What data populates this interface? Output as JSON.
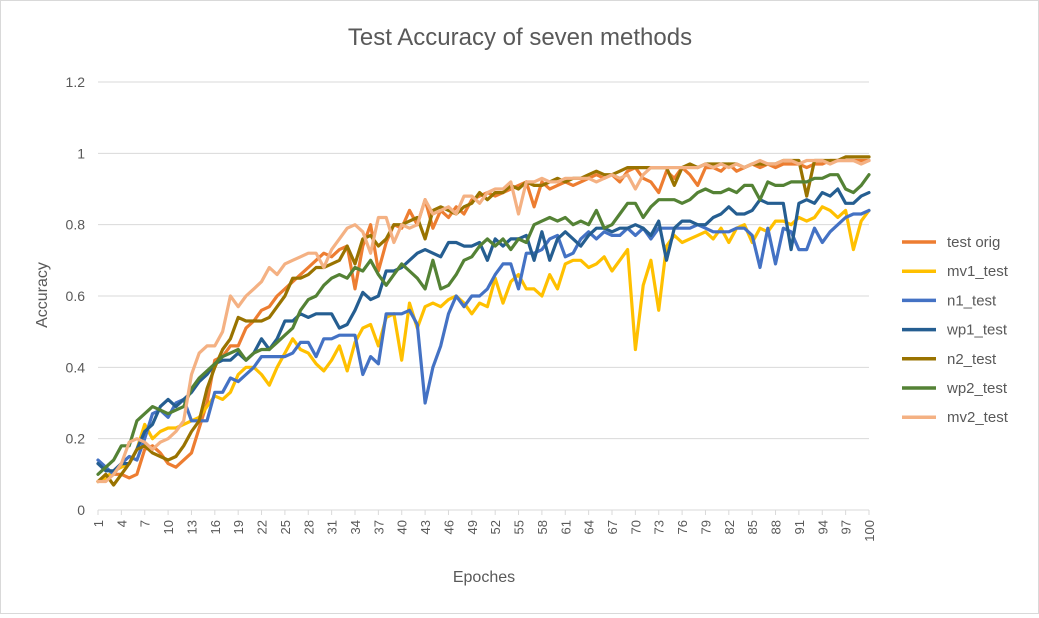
{
  "chart_data": {
    "type": "line",
    "title": "Test Accuracy of seven methods",
    "xlabel": "Epoches",
    "ylabel": "Accuracy",
    "ylim": [
      0,
      1.2
    ],
    "yticks": [
      "0",
      "0.2",
      "0.4",
      "0.6",
      "0.8",
      "1",
      "1.2"
    ],
    "xlim": [
      1,
      100
    ],
    "xticks": [
      1,
      4,
      7,
      10,
      13,
      16,
      19,
      22,
      25,
      28,
      31,
      34,
      37,
      40,
      43,
      46,
      49,
      52,
      55,
      58,
      61,
      64,
      67,
      70,
      73,
      76,
      79,
      82,
      85,
      88,
      91,
      94,
      97,
      100
    ],
    "grid": "horizontal",
    "legend": "right",
    "x": "1..100 (epoch)",
    "series": [
      {
        "name": "test orig",
        "color": "#ED7D31",
        "values": [
          0.08,
          0.09,
          0.1,
          0.1,
          0.09,
          0.1,
          0.17,
          0.18,
          0.16,
          0.13,
          0.12,
          0.14,
          0.16,
          0.23,
          0.3,
          0.42,
          0.43,
          0.46,
          0.46,
          0.51,
          0.53,
          0.56,
          0.57,
          0.6,
          0.62,
          0.64,
          0.66,
          0.68,
          0.7,
          0.72,
          0.71,
          0.73,
          0.74,
          0.62,
          0.74,
          0.8,
          0.67,
          0.75,
          0.8,
          0.79,
          0.84,
          0.8,
          0.87,
          0.79,
          0.84,
          0.82,
          0.85,
          0.83,
          0.87,
          0.88,
          0.89,
          0.88,
          0.89,
          0.9,
          0.91,
          0.92,
          0.85,
          0.92,
          0.9,
          0.91,
          0.92,
          0.91,
          0.92,
          0.93,
          0.94,
          0.93,
          0.94,
          0.92,
          0.95,
          0.96,
          0.93,
          0.92,
          0.89,
          0.95,
          0.93,
          0.96,
          0.94,
          0.91,
          0.96,
          0.96,
          0.95,
          0.97,
          0.95,
          0.96,
          0.97,
          0.96,
          0.97,
          0.96,
          0.97,
          0.97,
          0.97,
          0.96,
          0.97,
          0.97,
          0.98,
          0.98,
          0.98,
          0.98,
          0.98,
          0.98
        ]
      },
      {
        "name": "mv1_test",
        "color": "#FFC000",
        "values": [
          0.08,
          0.09,
          0.11,
          0.12,
          0.13,
          0.17,
          0.24,
          0.2,
          0.22,
          0.23,
          0.23,
          0.24,
          0.25,
          0.26,
          0.29,
          0.32,
          0.31,
          0.33,
          0.38,
          0.4,
          0.4,
          0.38,
          0.35,
          0.4,
          0.44,
          0.48,
          0.45,
          0.44,
          0.41,
          0.39,
          0.42,
          0.46,
          0.39,
          0.47,
          0.51,
          0.52,
          0.46,
          0.54,
          0.55,
          0.42,
          0.58,
          0.51,
          0.57,
          0.58,
          0.57,
          0.59,
          0.6,
          0.58,
          0.55,
          0.58,
          0.57,
          0.65,
          0.58,
          0.64,
          0.66,
          0.62,
          0.62,
          0.6,
          0.66,
          0.62,
          0.69,
          0.7,
          0.7,
          0.68,
          0.69,
          0.71,
          0.67,
          0.7,
          0.73,
          0.45,
          0.63,
          0.7,
          0.56,
          0.74,
          0.77,
          0.75,
          0.76,
          0.77,
          0.78,
          0.76,
          0.79,
          0.75,
          0.79,
          0.8,
          0.75,
          0.79,
          0.78,
          0.81,
          0.81,
          0.8,
          0.82,
          0.81,
          0.82,
          0.85,
          0.84,
          0.82,
          0.84,
          0.73,
          0.81,
          0.84
        ]
      },
      {
        "name": "n1_test",
        "color": "#4472C4",
        "values": [
          0.14,
          0.12,
          0.1,
          0.13,
          0.15,
          0.14,
          0.2,
          0.27,
          0.28,
          0.26,
          0.3,
          0.31,
          0.25,
          0.25,
          0.25,
          0.33,
          0.33,
          0.37,
          0.36,
          0.38,
          0.4,
          0.43,
          0.43,
          0.43,
          0.43,
          0.44,
          0.47,
          0.47,
          0.43,
          0.48,
          0.48,
          0.49,
          0.49,
          0.49,
          0.38,
          0.43,
          0.41,
          0.55,
          0.55,
          0.55,
          0.56,
          0.52,
          0.3,
          0.4,
          0.46,
          0.55,
          0.6,
          0.57,
          0.6,
          0.6,
          0.62,
          0.66,
          0.69,
          0.69,
          0.62,
          0.72,
          0.72,
          0.73,
          0.76,
          0.77,
          0.71,
          0.72,
          0.76,
          0.78,
          0.76,
          0.78,
          0.77,
          0.77,
          0.79,
          0.77,
          0.79,
          0.76,
          0.79,
          0.79,
          0.79,
          0.79,
          0.79,
          0.8,
          0.79,
          0.78,
          0.78,
          0.78,
          0.79,
          0.79,
          0.77,
          0.68,
          0.79,
          0.69,
          0.79,
          0.78,
          0.73,
          0.73,
          0.79,
          0.75,
          0.78,
          0.8,
          0.82,
          0.83,
          0.83,
          0.84
        ]
      },
      {
        "name": "wp1_test",
        "color": "#255E91",
        "values": [
          0.13,
          0.11,
          0.11,
          0.13,
          0.13,
          0.17,
          0.22,
          0.24,
          0.29,
          0.31,
          0.29,
          0.31,
          0.33,
          0.36,
          0.38,
          0.41,
          0.42,
          0.42,
          0.44,
          0.42,
          0.44,
          0.48,
          0.45,
          0.48,
          0.53,
          0.53,
          0.55,
          0.54,
          0.55,
          0.55,
          0.55,
          0.51,
          0.52,
          0.56,
          0.61,
          0.59,
          0.6,
          0.67,
          0.67,
          0.68,
          0.7,
          0.72,
          0.73,
          0.72,
          0.71,
          0.75,
          0.75,
          0.74,
          0.74,
          0.75,
          0.7,
          0.76,
          0.74,
          0.76,
          0.76,
          0.77,
          0.7,
          0.78,
          0.7,
          0.76,
          0.78,
          0.76,
          0.74,
          0.77,
          0.79,
          0.79,
          0.78,
          0.79,
          0.79,
          0.8,
          0.79,
          0.77,
          0.81,
          0.7,
          0.79,
          0.81,
          0.81,
          0.8,
          0.8,
          0.82,
          0.83,
          0.85,
          0.83,
          0.83,
          0.84,
          0.87,
          0.86,
          0.86,
          0.86,
          0.73,
          0.86,
          0.87,
          0.86,
          0.89,
          0.88,
          0.9,
          0.86,
          0.86,
          0.88,
          0.89
        ]
      },
      {
        "name": "n2_test",
        "color": "#997300",
        "values": [
          0.08,
          0.1,
          0.07,
          0.1,
          0.13,
          0.17,
          0.18,
          0.16,
          0.15,
          0.14,
          0.15,
          0.18,
          0.22,
          0.25,
          0.34,
          0.4,
          0.45,
          0.48,
          0.54,
          0.53,
          0.53,
          0.53,
          0.54,
          0.57,
          0.6,
          0.65,
          0.65,
          0.66,
          0.68,
          0.68,
          0.69,
          0.7,
          0.74,
          0.69,
          0.76,
          0.77,
          0.74,
          0.76,
          0.8,
          0.8,
          0.81,
          0.82,
          0.76,
          0.84,
          0.85,
          0.84,
          0.83,
          0.85,
          0.86,
          0.89,
          0.87,
          0.89,
          0.89,
          0.91,
          0.9,
          0.92,
          0.91,
          0.91,
          0.92,
          0.93,
          0.92,
          0.93,
          0.93,
          0.94,
          0.95,
          0.94,
          0.94,
          0.95,
          0.96,
          0.96,
          0.96,
          0.96,
          0.96,
          0.96,
          0.91,
          0.96,
          0.97,
          0.96,
          0.97,
          0.97,
          0.97,
          0.97,
          0.97,
          0.96,
          0.97,
          0.97,
          0.97,
          0.97,
          0.98,
          0.98,
          0.98,
          0.88,
          0.98,
          0.98,
          0.98,
          0.98,
          0.99,
          0.99,
          0.99,
          0.99
        ]
      },
      {
        "name": "wp2_test",
        "color": "#548235",
        "values": [
          0.1,
          0.12,
          0.14,
          0.18,
          0.18,
          0.25,
          0.27,
          0.29,
          0.28,
          0.27,
          0.28,
          0.29,
          0.34,
          0.37,
          0.39,
          0.41,
          0.43,
          0.44,
          0.45,
          0.42,
          0.44,
          0.45,
          0.45,
          0.47,
          0.49,
          0.51,
          0.56,
          0.59,
          0.6,
          0.63,
          0.65,
          0.66,
          0.65,
          0.68,
          0.67,
          0.7,
          0.66,
          0.63,
          0.66,
          0.69,
          0.67,
          0.65,
          0.62,
          0.7,
          0.62,
          0.63,
          0.66,
          0.7,
          0.71,
          0.74,
          0.76,
          0.74,
          0.76,
          0.73,
          0.76,
          0.75,
          0.8,
          0.81,
          0.82,
          0.81,
          0.82,
          0.8,
          0.81,
          0.8,
          0.84,
          0.79,
          0.8,
          0.83,
          0.86,
          0.86,
          0.82,
          0.85,
          0.87,
          0.87,
          0.87,
          0.86,
          0.87,
          0.89,
          0.9,
          0.89,
          0.89,
          0.9,
          0.89,
          0.91,
          0.91,
          0.87,
          0.92,
          0.91,
          0.91,
          0.92,
          0.92,
          0.92,
          0.93,
          0.93,
          0.94,
          0.94,
          0.9,
          0.89,
          0.91,
          0.94
        ]
      },
      {
        "name": "mv2_test",
        "color": "#F4B183",
        "values": [
          0.08,
          0.08,
          0.1,
          0.13,
          0.19,
          0.2,
          0.19,
          0.17,
          0.19,
          0.2,
          0.22,
          0.25,
          0.38,
          0.44,
          0.46,
          0.46,
          0.5,
          0.6,
          0.57,
          0.6,
          0.62,
          0.64,
          0.68,
          0.66,
          0.69,
          0.7,
          0.71,
          0.72,
          0.72,
          0.68,
          0.73,
          0.76,
          0.79,
          0.8,
          0.78,
          0.72,
          0.82,
          0.82,
          0.75,
          0.8,
          0.79,
          0.8,
          0.87,
          0.83,
          0.84,
          0.85,
          0.83,
          0.88,
          0.88,
          0.86,
          0.89,
          0.9,
          0.9,
          0.92,
          0.83,
          0.92,
          0.92,
          0.93,
          0.92,
          0.92,
          0.93,
          0.93,
          0.93,
          0.93,
          0.92,
          0.93,
          0.94,
          0.93,
          0.94,
          0.9,
          0.94,
          0.96,
          0.96,
          0.96,
          0.96,
          0.96,
          0.96,
          0.96,
          0.97,
          0.96,
          0.97,
          0.96,
          0.97,
          0.96,
          0.97,
          0.98,
          0.97,
          0.97,
          0.98,
          0.98,
          0.97,
          0.98,
          0.98,
          0.98,
          0.97,
          0.98,
          0.98,
          0.98,
          0.97,
          0.98
        ]
      }
    ]
  }
}
